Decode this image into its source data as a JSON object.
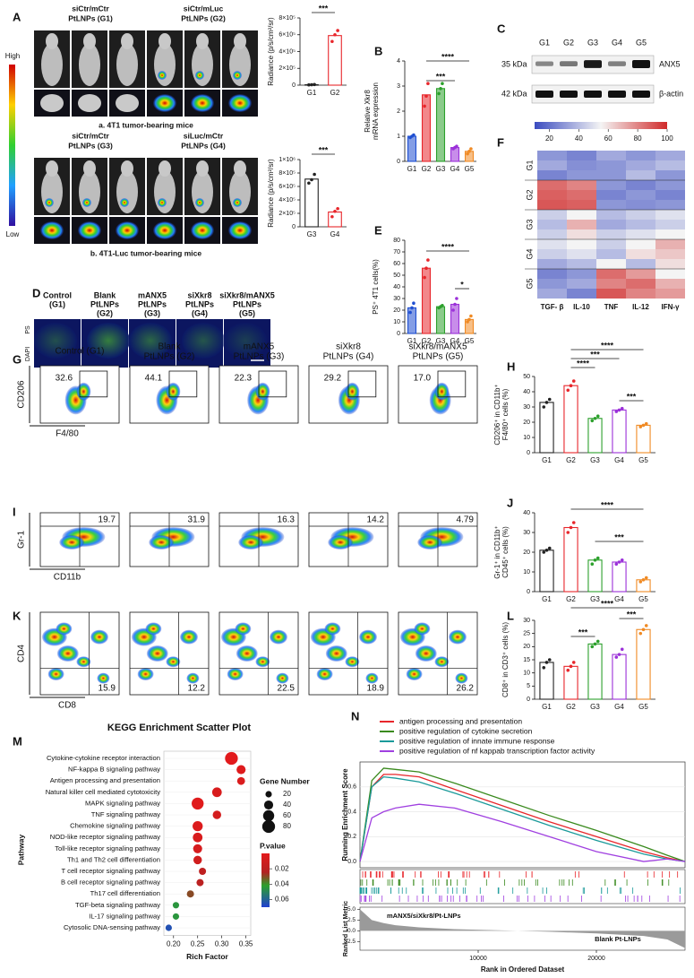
{
  "panels": {
    "A": {
      "label": "A",
      "groups": [
        [
          "siCtr/mCtr",
          "PtLNPs (G1)"
        ],
        [
          "siCtr/mLuc",
          "PtLNPs (G2)"
        ],
        [
          "siCtr/mCtr",
          "PtLNPs (G3)"
        ],
        [
          "siLuc/mCtr",
          "PtLNPs (G4)"
        ]
      ],
      "scale": [
        "High",
        "Low"
      ],
      "captions": [
        "a. 4T1 tumor-bearing mice",
        "b. 4T1-Luc tumor-bearing mice"
      ]
    },
    "C": {
      "label": "C",
      "lanes": [
        "G1",
        "G2",
        "G3",
        "G4",
        "G5"
      ],
      "sizes": [
        "35 kDa",
        "42 kDa"
      ],
      "proteins": [
        "ANX5",
        "β-actin"
      ]
    },
    "D": {
      "label": "D",
      "groups": [
        [
          "Control",
          "(G1)"
        ],
        [
          "Blank",
          "PtLNPs",
          "(G2)"
        ],
        [
          "mANX5",
          "PtLNPs",
          "(G3)"
        ],
        [
          "siXkr8",
          "PtLNPs",
          "(G4)"
        ],
        [
          "siXkr8/mANX5",
          "PtLNPs",
          "(G5)"
        ]
      ],
      "stains": [
        "DAPI",
        "PS"
      ]
    },
    "G": {
      "label": "G",
      "groups": [
        [
          "Control (G1)"
        ],
        [
          "Blank",
          "PtLNPs (G2)"
        ],
        [
          "mANX5",
          "PtLNPs (G3)"
        ],
        [
          "siXkr8",
          "PtLNPs (G4)"
        ],
        [
          "siXkr8/mANX5",
          "PtLNPs (G5)"
        ]
      ],
      "percentages": [
        "32.6",
        "44.1",
        "22.3",
        "29.2",
        "17.0"
      ],
      "y_axis": "CD206",
      "x_axis": "F4/80"
    },
    "I": {
      "label": "I",
      "percentages": [
        "19.7",
        "31.9",
        "16.3",
        "14.2",
        "4.79"
      ],
      "y_axis": "Gr-1",
      "x_axis": "CD11b"
    },
    "K": {
      "label": "K",
      "percentages": [
        "15.9",
        "12.2",
        "22.5",
        "18.9",
        "26.2"
      ],
      "y_axis": "CD4",
      "x_axis": "CD8"
    }
  },
  "chart_data": [
    {
      "type": "bar",
      "ylabel": [
        "Radiance (p/s/cm²/sr)"
      ],
      "categories": [
        "G1",
        "G2"
      ],
      "values": [
        5000,
        590000
      ],
      "points": [
        [
          3000,
          5000,
          7000
        ],
        [
          520000,
          600000,
          650000
        ]
      ],
      "colors": [
        "#222222",
        "#e8262b"
      ],
      "filled": false,
      "ylim": [
        0,
        800000
      ],
      "yticks": [
        0,
        {
          "value": 200000,
          "label": "2×10⁵"
        },
        {
          "value": 400000,
          "label": "4×10⁵"
        },
        {
          "value": 600000,
          "label": "6×10⁵"
        },
        {
          "value": 800000,
          "label": "8×10⁵"
        }
      ],
      "significance": [
        "***"
      ]
    },
    {
      "type": "bar",
      "ylabel": [
        "Radiance (p/s/cm²/sr)"
      ],
      "categories": [
        "G3",
        "G4"
      ],
      "values": [
        710000,
        220000
      ],
      "points": [
        [
          650000,
          700000,
          780000
        ],
        [
          150000,
          230000,
          270000
        ]
      ],
      "colors": [
        "#222222",
        "#e8262b"
      ],
      "filled": false,
      "ylim": [
        0,
        1000000
      ],
      "yticks": [
        0,
        {
          "value": 200000,
          "label": "2×10⁵"
        },
        {
          "value": 400000,
          "label": "4×10⁵"
        },
        {
          "value": 600000,
          "label": "6×10⁵"
        },
        {
          "value": 800000,
          "label": "8×10⁵"
        },
        {
          "value": 1000000,
          "label": "1×10⁶"
        }
      ],
      "significance": [
        "***"
      ]
    },
    {
      "type": "bar",
      "label": "B",
      "ylabel": [
        "Relative Xkr8",
        "mRNA expression"
      ],
      "categories": [
        "G1",
        "G2",
        "G3",
        "G4",
        "G5"
      ],
      "values": [
        1.0,
        2.65,
        2.9,
        0.55,
        0.4
      ],
      "points": [
        [
          0.95,
          1.0,
          1.05
        ],
        [
          2.2,
          2.6,
          3.1
        ],
        [
          2.7,
          2.9,
          3.1
        ],
        [
          0.5,
          0.55,
          0.6
        ],
        [
          0.3,
          0.4,
          0.5
        ]
      ],
      "colors": [
        "#1f4fd1",
        "#e8262b",
        "#2ca02c",
        "#9b30d9",
        "#f08a24"
      ],
      "filled": true,
      "ylim": [
        0,
        4
      ],
      "yticks": [
        0,
        1,
        2,
        3,
        4
      ],
      "significance": [
        "****",
        "***"
      ]
    },
    {
      "type": "bar",
      "label": "E",
      "ylabel": [
        "PS⁺ 4T1 cells(%)"
      ],
      "categories": [
        "G1",
        "G2",
        "G3",
        "G4",
        "G5"
      ],
      "values": [
        22,
        56,
        23,
        25,
        12
      ],
      "points": [
        [
          18,
          22,
          26
        ],
        [
          48,
          56,
          63
        ],
        [
          22,
          23,
          24
        ],
        [
          20,
          25,
          30
        ],
        [
          10,
          12,
          15
        ]
      ],
      "colors": [
        "#1f4fd1",
        "#e8262b",
        "#2ca02c",
        "#9b30d9",
        "#f08a24"
      ],
      "filled": true,
      "ylim": [
        0,
        80
      ],
      "yticks": [
        0,
        10,
        20,
        30,
        40,
        50,
        60,
        70,
        80
      ],
      "significance": [
        "****",
        "*"
      ]
    },
    {
      "type": "bar",
      "label": "H",
      "ylabel": [
        "CD206⁺ in CD11b⁺",
        "F4/80⁺ cells (%)"
      ],
      "categories": [
        "G1",
        "G2",
        "G3",
        "G4",
        "G5"
      ],
      "values": [
        33,
        44,
        22.5,
        28,
        18
      ],
      "points": [
        [
          30,
          33,
          35
        ],
        [
          41,
          44,
          47
        ],
        [
          21,
          22.5,
          24
        ],
        [
          27,
          28,
          29
        ],
        [
          17,
          18,
          19
        ]
      ],
      "colors": [
        "#222222",
        "#e8262b",
        "#2ca02c",
        "#9b30d9",
        "#f08a24"
      ],
      "filled": false,
      "ylim": [
        0,
        50
      ],
      "yticks": [
        0,
        10,
        20,
        30,
        40,
        50
      ],
      "significance": [
        "****",
        "***",
        "****",
        "***"
      ]
    },
    {
      "type": "bar",
      "label": "J",
      "ylabel": [
        "Gr-1⁺ in CD11b⁺",
        "CD45⁺ cells (%)"
      ],
      "categories": [
        "G1",
        "G2",
        "G3",
        "G4",
        "G5"
      ],
      "values": [
        21,
        32.5,
        16,
        15,
        6
      ],
      "points": [
        [
          20,
          21,
          22
        ],
        [
          30,
          32.5,
          35
        ],
        [
          14,
          16,
          17
        ],
        [
          14,
          15,
          16
        ],
        [
          5,
          6,
          7
        ]
      ],
      "colors": [
        "#222222",
        "#e8262b",
        "#2ca02c",
        "#9b30d9",
        "#f08a24"
      ],
      "filled": false,
      "ylim": [
        0,
        40
      ],
      "yticks": [
        0,
        10,
        20,
        30,
        40
      ],
      "significance": [
        "****",
        "***"
      ]
    },
    {
      "type": "bar",
      "label": "L",
      "ylabel": [
        "CD8⁺ in CD3⁺ cells (%)"
      ],
      "categories": [
        "G1",
        "G2",
        "G3",
        "G4",
        "G5"
      ],
      "values": [
        14,
        12.5,
        21,
        17,
        26.5
      ],
      "points": [
        [
          12,
          14,
          15
        ],
        [
          11,
          12.5,
          14
        ],
        [
          20,
          21,
          22
        ],
        [
          16,
          17,
          19
        ],
        [
          25,
          26.5,
          28
        ]
      ],
      "colors": [
        "#222222",
        "#e8262b",
        "#2ca02c",
        "#9b30d9",
        "#f08a24"
      ],
      "filled": false,
      "ylim": [
        0,
        30
      ],
      "yticks": [
        0,
        5,
        10,
        15,
        20,
        25,
        30
      ],
      "significance": [
        "****",
        "***",
        "***"
      ]
    },
    {
      "type": "heatmap",
      "label": "F",
      "row_groups": [
        "G1",
        "G2",
        "G3",
        "G4",
        "G5"
      ],
      "columns": [
        "TGF- β",
        "IL-10",
        "TNF",
        "IL-12",
        "IFN-γ"
      ],
      "values": [
        [
          30,
          25,
          35,
          30,
          35
        ],
        [
          35,
          28,
          30,
          35,
          40
        ],
        [
          25,
          30,
          30,
          40,
          30
        ],
        [
          85,
          80,
          30,
          25,
          30
        ],
        [
          88,
          85,
          25,
          30,
          25
        ],
        [
          90,
          88,
          30,
          28,
          30
        ],
        [
          45,
          55,
          40,
          45,
          50
        ],
        [
          40,
          70,
          35,
          40,
          45
        ],
        [
          45,
          60,
          45,
          50,
          55
        ],
        [
          50,
          55,
          45,
          55,
          70
        ],
        [
          45,
          50,
          40,
          60,
          65
        ],
        [
          35,
          40,
          55,
          40,
          60
        ],
        [
          25,
          30,
          85,
          75,
          55
        ],
        [
          30,
          35,
          80,
          85,
          70
        ],
        [
          35,
          25,
          90,
          80,
          75
        ]
      ],
      "clim": [
        10,
        100
      ],
      "cticks": [
        20,
        40,
        60,
        80,
        100
      ]
    },
    {
      "type": "scatter",
      "label": "M",
      "title": "KEGG Enrichment Scatter Plot",
      "ylabel": "Pathway",
      "xlabel": "Rich Factor",
      "categories": [
        "Cytokine-cytokine receptor interaction",
        "NF-kappa B signaling pathway",
        "Antigen processing and presentation",
        "Natural killer cell mediated cytotoxicity",
        "MAPK signaling pathway",
        "TNF signaling pathway",
        "Chemokine signaling pathway",
        "NOD-like receptor signaling pathway",
        "Toll-like receptor signaling pathway",
        "Th1 and Th2 cell differentiation",
        "T cell receptor signaling pathway",
        "B cell receptor signaling pathway",
        "Th17 cell differentiation",
        "TGF-beta signaling pathway",
        "IL-17 signaling pathway",
        "Cytosolic DNA-sensing pathway"
      ],
      "values": [
        0.32,
        0.34,
        0.34,
        0.29,
        0.25,
        0.29,
        0.25,
        0.25,
        0.25,
        0.25,
        0.26,
        0.255,
        0.235,
        0.205,
        0.205,
        0.19
      ],
      "sizes": [
        80,
        40,
        30,
        45,
        70,
        35,
        50,
        45,
        40,
        35,
        25,
        25,
        25,
        20,
        20,
        20
      ],
      "pvalues": [
        0.001,
        0.003,
        0.005,
        0.006,
        0.002,
        0.008,
        0.004,
        0.006,
        0.007,
        0.01,
        0.018,
        0.02,
        0.03,
        0.045,
        0.045,
        0.065
      ],
      "xlim": [
        0.18,
        0.36
      ],
      "xticks": [
        {
          "value": 0.2,
          "label": "0.20"
        },
        0.25,
        {
          "value": 0.3,
          "label": "0.30"
        },
        0.35
      ],
      "size_title": "Gene Number",
      "size_legend": [
        20,
        40,
        60,
        80
      ],
      "color_title": "P.value",
      "clim": [
        0,
        0.07
      ],
      "color_legend": [
        0.02,
        0.04,
        0.06
      ]
    },
    {
      "type": "line",
      "label": "N",
      "ylabel": "Running Enrichment Score",
      "xlabel": "Rank in Ordered Dataset",
      "x": [
        0,
        1000,
        2000,
        3000,
        5000,
        8000,
        12000,
        16000,
        20000,
        24000,
        26000,
        27500
      ],
      "series": [
        {
          "name": "antigen processing and presentation",
          "color": "#e8262b",
          "values": [
            0,
            0.6,
            0.7,
            0.7,
            0.68,
            0.58,
            0.45,
            0.32,
            0.2,
            0.08,
            0.03,
            0
          ]
        },
        {
          "name": "positive regulation of cytokine secretion",
          "color": "#3a8a1e",
          "values": [
            0,
            0.65,
            0.75,
            0.74,
            0.72,
            0.63,
            0.5,
            0.37,
            0.25,
            0.12,
            0.05,
            0
          ]
        },
        {
          "name": "positive regulation of innate immune response",
          "color": "#1a9a9a",
          "values": [
            0,
            0.6,
            0.68,
            0.67,
            0.64,
            0.55,
            0.42,
            0.29,
            0.17,
            0.06,
            0.02,
            0
          ]
        },
        {
          "name": "positive regulation of nf kappab transcription factor activity",
          "color": "#a040e0",
          "values": [
            0,
            0.35,
            0.4,
            0.43,
            0.46,
            0.43,
            0.32,
            0.2,
            0.08,
            0.0,
            0.02,
            0
          ]
        }
      ],
      "xlim": [
        0,
        27500
      ],
      "xticks": [
        10000,
        20000
      ],
      "ylim": [
        -0.05,
        0.8
      ],
      "yticks": [
        {
          "value": 0,
          "label": "0.0"
        },
        0.2,
        0.4,
        0.6
      ],
      "metric_label": "Ranked List Metric",
      "metric_values": [
        5,
        2.5,
        1.8,
        1.3,
        0.8,
        0.4,
        0.1,
        -0.2,
        -0.6,
        -1.2,
        -2,
        -4
      ],
      "metric_ylim": [
        -4.5,
        5.5
      ],
      "metric_yticks": [
        -2.5,
        {
          "value": 0,
          "label": "0.0"
        },
        2.5,
        {
          "value": 5,
          "label": "5.0"
        }
      ],
      "annotations": [
        "mANX5/siXkr8/Pt-LNPs",
        "Blank Pt-LNPs"
      ]
    }
  ]
}
